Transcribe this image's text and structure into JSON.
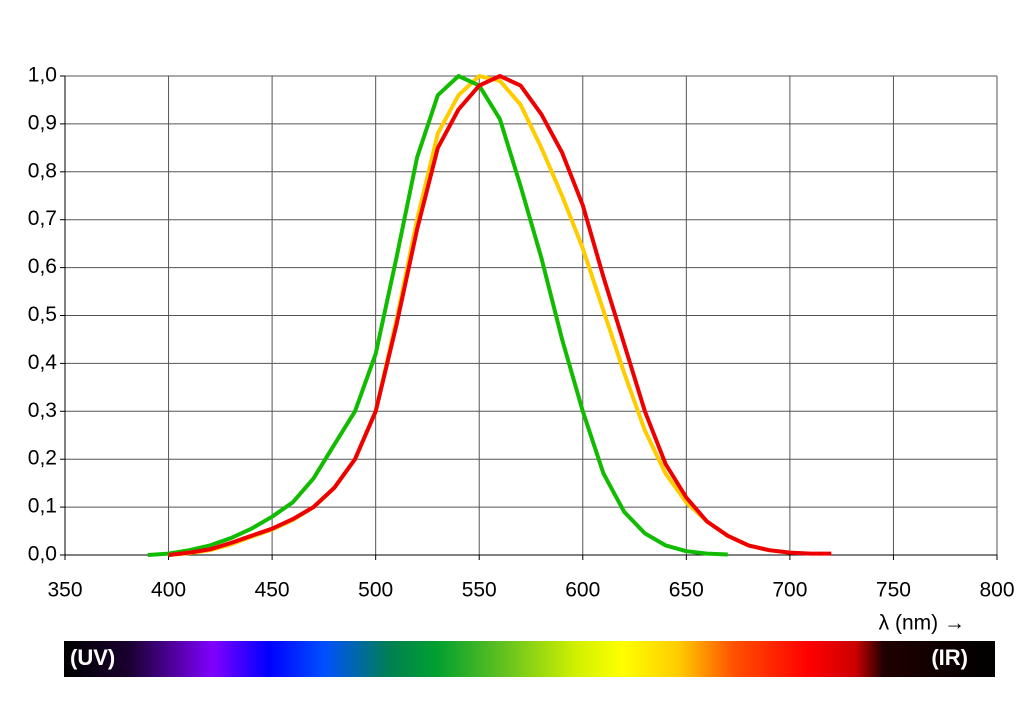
{
  "chart_data": {
    "type": "line",
    "x_label": "λ (nm) →",
    "annotations": [
      "(UV)",
      "(IR)"
    ],
    "x": [
      390,
      400,
      410,
      420,
      430,
      440,
      450,
      460,
      470,
      480,
      490,
      500,
      510,
      520,
      530,
      540,
      550,
      560,
      570,
      580,
      590,
      600,
      610,
      620,
      630,
      640,
      650,
      660,
      670,
      680,
      690,
      700,
      710,
      720
    ],
    "series": [
      {
        "color": "#ffcc00",
        "values": [
          null,
          0,
          0.004,
          0.01,
          0.022,
          0.038,
          0.053,
          0.073,
          0.1,
          0.14,
          0.2,
          0.3,
          0.49,
          0.7,
          0.88,
          0.96,
          1.0,
          0.99,
          0.94,
          0.85,
          0.75,
          0.64,
          0.51,
          0.38,
          0.26,
          0.17,
          0.11,
          0.07,
          0.04,
          0.02,
          0.01,
          0.005,
          null,
          null
        ]
      },
      {
        "color": "#11bb00",
        "values": [
          0,
          0.003,
          0.01,
          0.02,
          0.035,
          0.055,
          0.08,
          0.11,
          0.16,
          0.23,
          0.3,
          0.42,
          0.62,
          0.83,
          0.96,
          1.0,
          0.98,
          0.91,
          0.77,
          0.62,
          0.45,
          0.3,
          0.17,
          0.09,
          0.045,
          0.02,
          0.008,
          0.003,
          0.001,
          null,
          null,
          null,
          null,
          null
        ]
      },
      {
        "color": "#ee0000",
        "values": [
          null,
          0,
          0.005,
          0.012,
          0.025,
          0.04,
          0.055,
          0.075,
          0.1,
          0.14,
          0.2,
          0.3,
          0.48,
          0.68,
          0.85,
          0.93,
          0.98,
          1.0,
          0.98,
          0.92,
          0.84,
          0.73,
          0.58,
          0.44,
          0.3,
          0.19,
          0.12,
          0.07,
          0.04,
          0.02,
          0.01,
          0.005,
          0.003,
          0.003
        ]
      }
    ],
    "xlim": [
      350,
      800
    ],
    "xticks": [
      350,
      400,
      450,
      500,
      550,
      600,
      650,
      700,
      750,
      800
    ],
    "ylim": [
      0,
      1
    ],
    "yticks": [
      {
        "value": 0,
        "label": "0,0"
      },
      {
        "value": 0.1,
        "label": "0,1"
      },
      {
        "value": 0.2,
        "label": "0,2"
      },
      {
        "value": 0.3,
        "label": "0,3"
      },
      {
        "value": 0.4,
        "label": "0,4"
      },
      {
        "value": 0.5,
        "label": "0,5"
      },
      {
        "value": 0.6,
        "label": "0,6"
      },
      {
        "value": 0.7,
        "label": "0,7"
      },
      {
        "value": 0.8,
        "label": "0,8"
      },
      {
        "value": 0.9,
        "label": "0,9"
      },
      {
        "value": 1,
        "label": "1,0"
      }
    ],
    "grid": true
  }
}
